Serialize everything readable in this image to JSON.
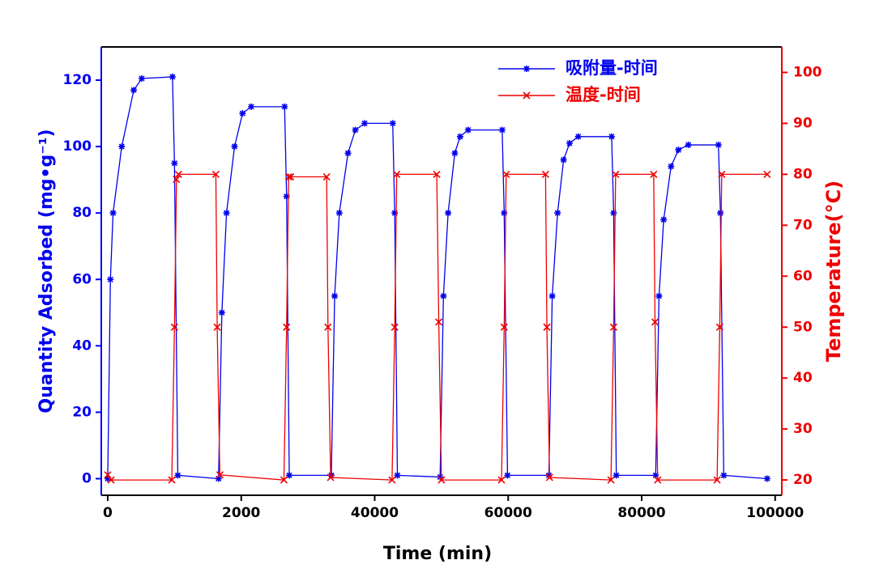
{
  "chart_data": {
    "type": "line",
    "xlabel": "Time (min)",
    "ylabel": "Quantity Adsorbed (mg•g⁻¹)",
    "y2label": "Temperature(°C)",
    "xlim": [
      -967,
      101000
    ],
    "xticks": [
      0,
      {
        "value": 20000,
        "label": "2000"
      },
      40000,
      60000,
      80000,
      100000
    ],
    "ylim": [
      -5,
      130
    ],
    "yticks": [
      0,
      20,
      40,
      60,
      80,
      100,
      120
    ],
    "y2lim": [
      17,
      105
    ],
    "y2ticks": [
      20,
      30,
      40,
      50,
      60,
      70,
      80,
      90,
      100
    ],
    "legend": "upper right",
    "series": [
      {
        "name": "吸附量-时间",
        "color": "#0000ee",
        "marker": "star",
        "x": [
          0,
          400,
          800,
          2100,
          3900,
          5100,
          9700,
          10000,
          10500,
          16600,
          17100,
          17800,
          19000,
          20200,
          21500,
          26500,
          26800,
          27200,
          33500,
          34000,
          34700,
          36000,
          37100,
          38500,
          42700,
          43000,
          43400,
          49800,
          50300,
          51000,
          52000,
          52800,
          54000,
          59100,
          59400,
          59900,
          66100,
          66600,
          67400,
          68300,
          69200,
          70500,
          75500,
          75800,
          76200,
          82100,
          82600,
          83300,
          84400,
          85500,
          87000,
          91500,
          91800,
          92300,
          98800
        ],
        "values": [
          0,
          60,
          80,
          100,
          117,
          120.5,
          121,
          95,
          1,
          0,
          50,
          80,
          100,
          110,
          112,
          112,
          85,
          1,
          1,
          55,
          80,
          98,
          105,
          107,
          107,
          80,
          1,
          0.5,
          55,
          80,
          98,
          103,
          105,
          105,
          80,
          1,
          1,
          55,
          80,
          96,
          101,
          103,
          103,
          80,
          1,
          1,
          55,
          78,
          94,
          99,
          100.5,
          100.5,
          80,
          1,
          0
        ]
      },
      {
        "name": "温度-时间",
        "color": "#ee0000",
        "marker": "x",
        "axis": "y2",
        "x": [
          0,
          500,
          9600,
          10000,
          10300,
          10600,
          16200,
          16400,
          16800,
          26400,
          26800,
          27100,
          27400,
          32800,
          33000,
          33400,
          42600,
          43000,
          43300,
          49300,
          49600,
          50000,
          59000,
          59400,
          59700,
          65600,
          65800,
          66200,
          75400,
          75800,
          76100,
          81800,
          82000,
          82400,
          91300,
          91700,
          92000,
          98800
        ],
        "values": [
          21,
          20,
          20,
          50,
          79,
          80,
          80,
          50,
          21,
          20,
          50,
          79.5,
          79.5,
          79.5,
          50,
          20.5,
          20,
          50,
          80,
          80,
          51,
          20,
          20,
          50,
          80,
          80,
          50,
          20.5,
          20,
          50,
          80,
          80,
          51,
          20,
          20,
          50,
          80,
          80
        ]
      }
    ]
  }
}
